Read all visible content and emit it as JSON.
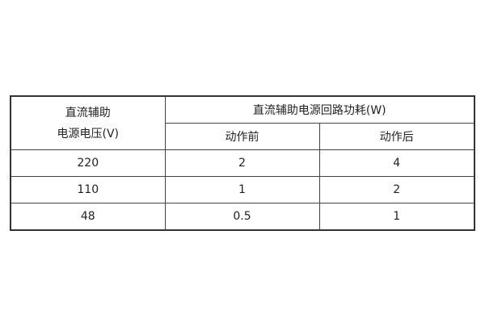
{
  "table": {
    "header": {
      "voltage_line1": "直流辅助",
      "voltage_line2": "电源电压(V)",
      "power_group": "直流辅助电源回路功耗(W)",
      "before_action": "动作前",
      "after_action": "动作后"
    },
    "rows": [
      {
        "voltage": "220",
        "before": "2",
        "after": "4"
      },
      {
        "voltage": "110",
        "before": "1",
        "after": "2"
      },
      {
        "voltage": "48",
        "before": "0.5",
        "after": "1"
      }
    ]
  }
}
